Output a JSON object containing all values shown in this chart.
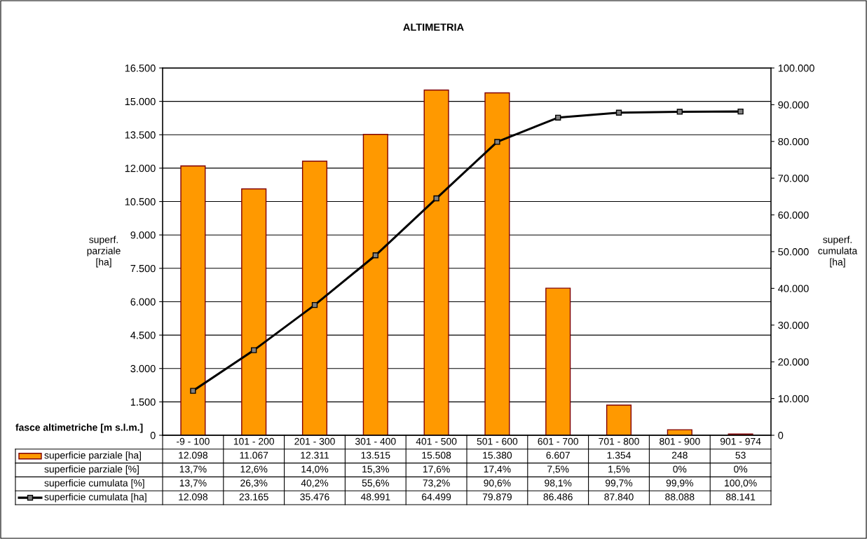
{
  "chart_data": {
    "type": "bar",
    "title": "ALTIMETRIA",
    "xlabel": "fasce altimetriche [m s.l.m.]",
    "ylabel": "superf.\nparziale\n[ha]",
    "y2label": "superf.\ncumulata\n[ha]",
    "categories": [
      "-9 - 100",
      "101 - 200",
      "201 - 300",
      "301 - 400",
      "401 - 500",
      "501 - 600",
      "601 - 700",
      "701 - 800",
      "801 - 900",
      "901 - 974"
    ],
    "series": [
      {
        "name": "superficie parziale [ha]",
        "color": "#ff9900",
        "values": [
          12098,
          11067,
          12311,
          13515,
          15508,
          15380,
          6607,
          1354,
          248,
          53
        ],
        "value_labels": [
          "12.098",
          "11.067",
          "12.311",
          "13.515",
          "15.508",
          "15.380",
          "6.607",
          "1.354",
          "248",
          "53"
        ]
      },
      {
        "name": "superficie cumulata [ha]",
        "type": "line",
        "axis": "y2",
        "color": "#000000",
        "marker": "square",
        "values": [
          12098,
          23165,
          35476,
          48991,
          64499,
          79879,
          86486,
          87840,
          88088,
          88141
        ],
        "value_labels": [
          "12.098",
          "23.165",
          "35.476",
          "48.991",
          "64.499",
          "79.879",
          "86.486",
          "87.840",
          "88.088",
          "88.141"
        ]
      }
    ],
    "annotations": [
      "superficie parziale [%]",
      "13,7%",
      "12,6%",
      "14,0%",
      "15,3%",
      "17,6%",
      "17,4%",
      "7,5%",
      "1,5%",
      "0%",
      "0%",
      "superficie cumulata [%]",
      "13,7%",
      "26,3%",
      "40,2%",
      "55,6%",
      "73,2%",
      "90,6%",
      "98,1%",
      "99,7%",
      "99,9%",
      "100,0%"
    ],
    "ylim": [
      0,
      16500
    ],
    "yticks": [
      {
        "value": 0,
        "label": "0"
      },
      {
        "value": 1500,
        "label": "1.500"
      },
      {
        "value": 3000,
        "label": "3.000"
      },
      {
        "value": 4500,
        "label": "4.500"
      },
      {
        "value": 6000,
        "label": "6.000"
      },
      {
        "value": 7500,
        "label": "7.500"
      },
      {
        "value": 9000,
        "label": "9.000"
      },
      {
        "value": 10500,
        "label": "10.500"
      },
      {
        "value": 12000,
        "label": "12.000"
      },
      {
        "value": 13500,
        "label": "13.500"
      },
      {
        "value": 15000,
        "label": "15.000"
      },
      {
        "value": 16500,
        "label": "16.500"
      }
    ],
    "y2lim": [
      0,
      100000
    ],
    "y2ticks": [
      {
        "value": 0,
        "label": "0"
      },
      {
        "value": 10000,
        "label": "10.000"
      },
      {
        "value": 20000,
        "label": "20.000"
      },
      {
        "value": 30000,
        "label": "30.000"
      },
      {
        "value": 40000,
        "label": "40.000"
      },
      {
        "value": 50000,
        "label": "50.000"
      },
      {
        "value": 60000,
        "label": "60.000"
      },
      {
        "value": 70000,
        "label": "70.000"
      },
      {
        "value": 80000,
        "label": "80.000"
      },
      {
        "value": 90000,
        "label": "90.000"
      },
      {
        "value": 100000,
        "label": "100.000"
      }
    ],
    "grid": "y",
    "data_labels": true,
    "legend": "bottom left"
  }
}
